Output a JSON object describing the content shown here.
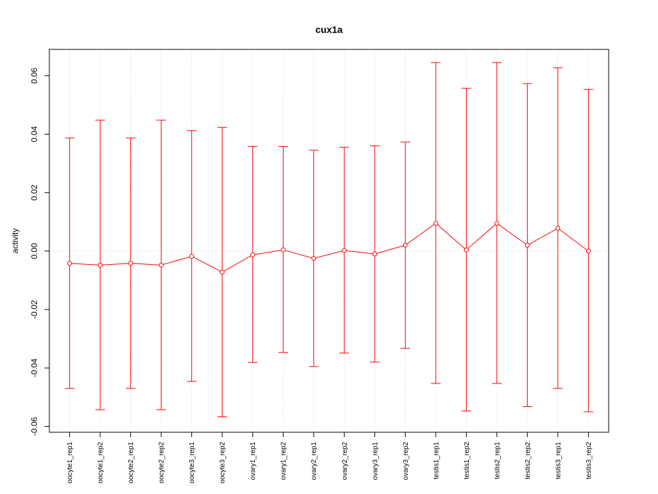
{
  "chart_data": {
    "type": "line",
    "title": "cux1a",
    "xlabel": "",
    "ylabel": "activity",
    "ylim": [
      -0.062,
      0.069
    ],
    "yticks": [
      -0.06,
      -0.04,
      -0.02,
      0.0,
      0.02,
      0.04,
      0.06
    ],
    "ytick_labels": [
      "-0.06",
      "-0.04",
      "-0.02",
      "0.00",
      "0.02",
      "0.04",
      "0.06"
    ],
    "grid": true,
    "legend": "none",
    "categories": [
      "oocyte1_rep1",
      "oocyte1_rep2",
      "oocyte2_rep1",
      "oocyte2_rep2",
      "oocyte3_rep1",
      "oocyte3_rep2",
      "ovary1_rep1",
      "ovary1_rep2",
      "ovary2_rep1",
      "ovary2_rep2",
      "ovary3_rep1",
      "ovary3_rep2",
      "testis1_rep1",
      "testis1_rep2",
      "testis2_rep1",
      "testis2_rep2",
      "testis3_rep1",
      "testis3_rep2"
    ],
    "series": [
      {
        "values": [
          -0.0042,
          -0.0048,
          -0.0042,
          -0.0048,
          -0.0018,
          -0.0072,
          -0.0013,
          0.0004,
          -0.0025,
          0.0002,
          -0.001,
          0.002,
          0.0095,
          0.0004,
          0.0095,
          0.002,
          0.0078,
          0.0
        ],
        "upper": [
          0.0387,
          0.0448,
          0.0387,
          0.0448,
          0.0412,
          0.0423,
          0.0358,
          0.0358,
          0.0345,
          0.0355,
          0.036,
          0.0373,
          0.0645,
          0.0557,
          0.0645,
          0.0573,
          0.0627,
          0.0553
        ],
        "lower": [
          -0.047,
          -0.0543,
          -0.047,
          -0.0543,
          -0.0446,
          -0.0567,
          -0.0381,
          -0.0347,
          -0.0395,
          -0.0349,
          -0.038,
          -0.0333,
          -0.0453,
          -0.0547,
          -0.0453,
          -0.0532,
          -0.047,
          -0.055
        ]
      }
    ],
    "colors": {
      "series": "#ff0000",
      "grid": "#d3d3d3",
      "axis": "#000000"
    }
  }
}
